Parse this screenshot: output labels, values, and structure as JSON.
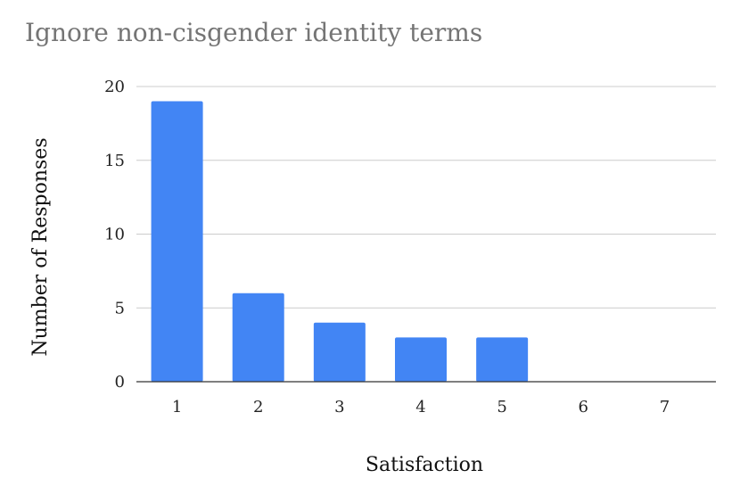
{
  "chart_data": {
    "type": "bar",
    "title": "Ignore non-cisgender identity terms",
    "xlabel": "Satisfaction",
    "ylabel": "Number of Responses",
    "categories": [
      "1",
      "2",
      "3",
      "4",
      "5",
      "6",
      "7"
    ],
    "values": [
      19,
      6,
      4,
      3,
      3,
      0,
      0
    ],
    "ylim": [
      0,
      20
    ],
    "yticks": [
      0,
      5,
      10,
      15,
      20
    ],
    "grid": true,
    "legend": "none",
    "bar_color": "#4285f4"
  }
}
